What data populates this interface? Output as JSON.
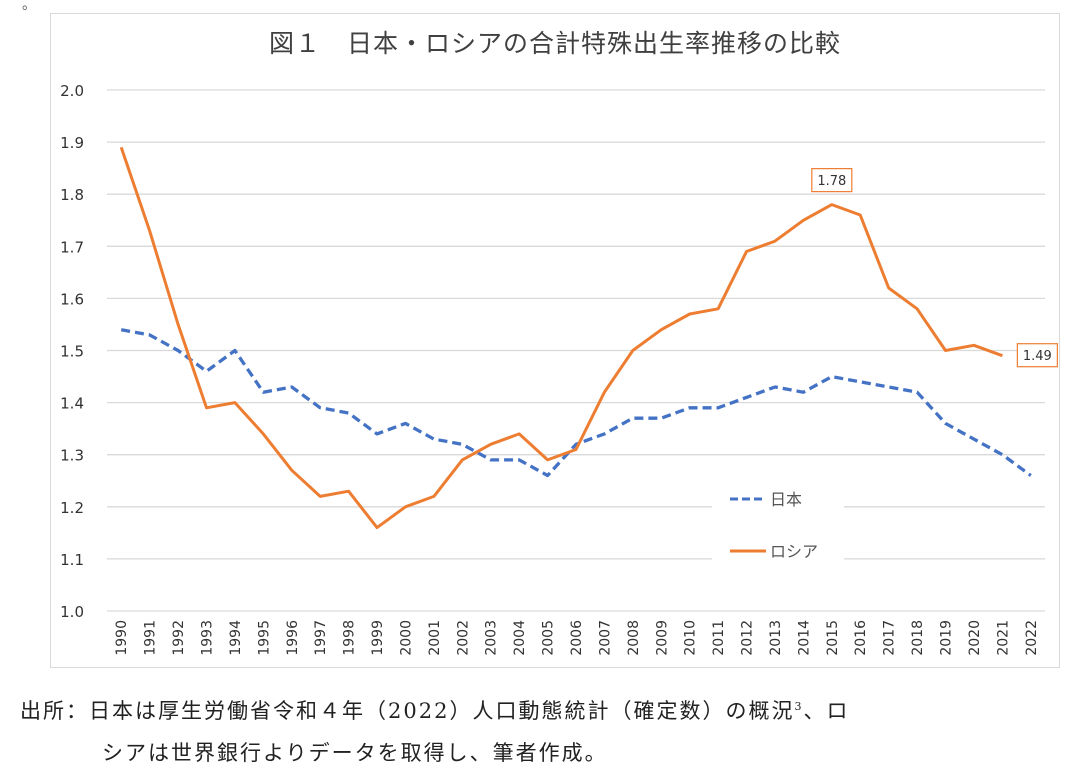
{
  "chart_data": {
    "type": "line",
    "title": "図１　日本・ロシアの合計特殊出生率推移の比較",
    "xlabel": "",
    "ylabel": "",
    "ylim": [
      1.0,
      2.0
    ],
    "yticks": [
      "1.0",
      "1.1",
      "1.2",
      "1.3",
      "1.4",
      "1.5",
      "1.6",
      "1.7",
      "1.8",
      "1.9",
      "2.0"
    ],
    "grid": true,
    "legend_position": "bottom-right-inside",
    "x": [
      "1990",
      "1991",
      "1992",
      "1993",
      "1994",
      "1995",
      "1996",
      "1997",
      "1998",
      "1999",
      "2000",
      "2001",
      "2002",
      "2003",
      "2004",
      "2005",
      "2006",
      "2007",
      "2008",
      "2009",
      "2010",
      "2011",
      "2012",
      "2013",
      "2014",
      "2015",
      "2016",
      "2017",
      "2018",
      "2019",
      "2020",
      "2021",
      "2022"
    ],
    "series": [
      {
        "name": "日本",
        "style": "dashed",
        "color": "#4472C4",
        "values": [
          1.54,
          1.53,
          1.5,
          1.46,
          1.5,
          1.42,
          1.43,
          1.39,
          1.38,
          1.34,
          1.36,
          1.33,
          1.32,
          1.29,
          1.29,
          1.26,
          1.32,
          1.34,
          1.37,
          1.37,
          1.39,
          1.39,
          1.41,
          1.43,
          1.42,
          1.45,
          1.44,
          1.43,
          1.42,
          1.36,
          1.33,
          1.3,
          1.26
        ]
      },
      {
        "name": "ロシア",
        "style": "solid",
        "color": "#ED7D31",
        "values": [
          1.89,
          1.73,
          1.55,
          1.39,
          1.4,
          1.34,
          1.27,
          1.22,
          1.23,
          1.16,
          1.2,
          1.22,
          1.29,
          1.32,
          1.34,
          1.29,
          1.31,
          1.42,
          1.5,
          1.54,
          1.57,
          1.58,
          1.69,
          1.71,
          1.75,
          1.78,
          1.76,
          1.62,
          1.58,
          1.5,
          1.51,
          1.49,
          null
        ]
      }
    ],
    "annotations": [
      {
        "series": "ロシア",
        "x": "2015",
        "label": "1.78"
      },
      {
        "series": "ロシア",
        "x": "2021",
        "label": "1.49"
      }
    ]
  },
  "caption": {
    "line1_prefix": "出所：日本は厚生労働省令和４年（2022）人口動態統計（確定数）の概況",
    "footnote": "3",
    "line1_suffix": "、ロ",
    "line2": "シアは世界銀行よりデータを取得し、筆者作成。"
  },
  "top_mark": "。"
}
